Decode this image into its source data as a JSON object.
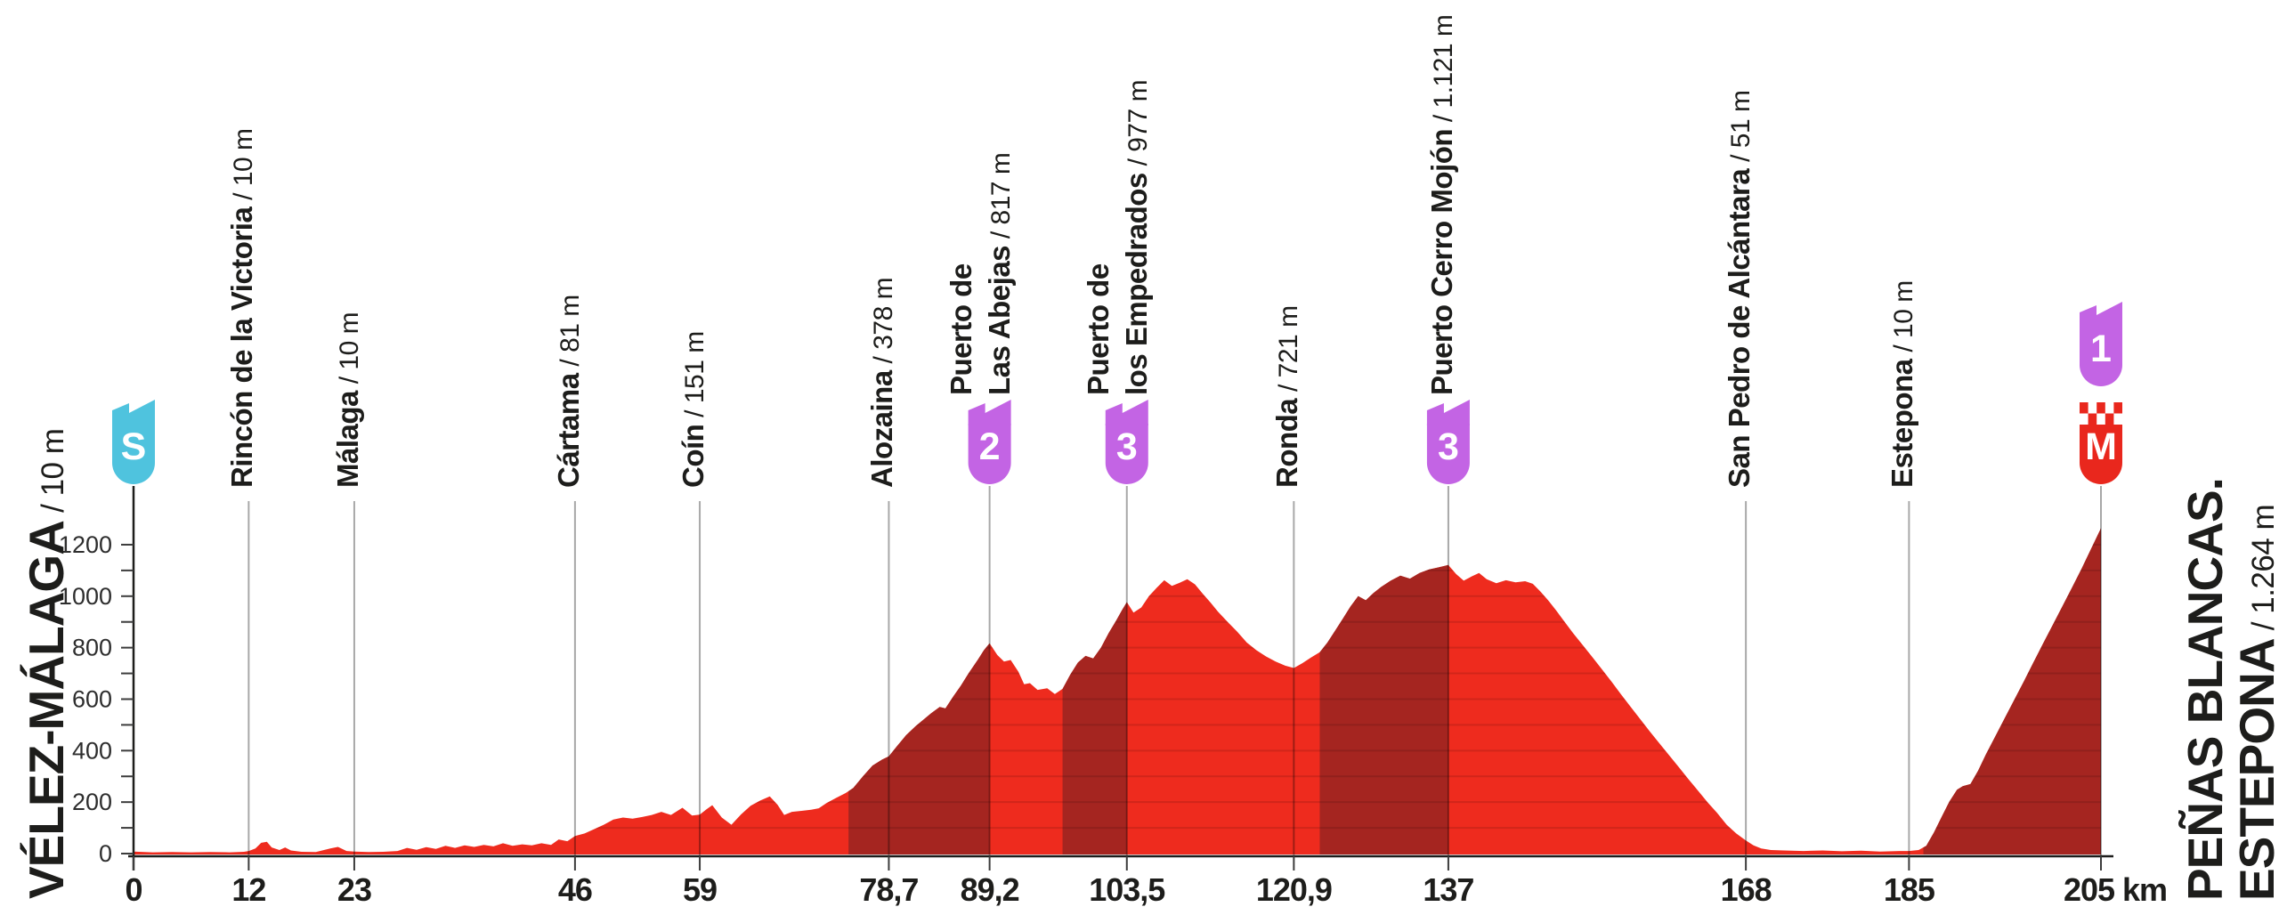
{
  "stage": {
    "start_name": "VÉLEZ-MÁLAGA",
    "start_elevation": " / 10 m",
    "finish_line1": "PEÑAS BLANCAS.",
    "finish_line2": "ESTEPONA",
    "finish_elevation": " / 1.264 m"
  },
  "colors": {
    "profile_red": "#ee2b1e",
    "climb_dark_red": "#a52520",
    "category_purple": "#c364e4",
    "start_cyan": "#4fc3de",
    "finish_red": "#e9271d",
    "text_black": "#1d1d1b",
    "axis_gray": "#3c3c3c",
    "gridline": "rgba(0,0,0,0.34)",
    "stripe": "rgba(0,0,0,0.12)"
  },
  "chart_data": {
    "type": "area",
    "title": "Stage elevation profile Vélez-Málaga to Peñas Blancas. Estepona",
    "xlabel": "km",
    "ylabel": "m",
    "xlim": [
      0,
      205
    ],
    "ylim": [
      0,
      1300
    ],
    "grid_step_m": 100,
    "y_ticks": [
      0,
      200,
      400,
      600,
      800,
      1000,
      1200
    ],
    "y_minor_step": 100,
    "x_ticks": [
      {
        "km": 0,
        "label": "0"
      },
      {
        "km": 12,
        "label": "12"
      },
      {
        "km": 23,
        "label": "23"
      },
      {
        "km": 46,
        "label": "46"
      },
      {
        "km": 59,
        "label": "59"
      },
      {
        "km": 78.7,
        "label": "78,7"
      },
      {
        "km": 89.2,
        "label": "89,2"
      },
      {
        "km": 103.5,
        "label": "103,5"
      },
      {
        "km": 120.9,
        "label": "120,9"
      },
      {
        "km": 137,
        "label": "137"
      },
      {
        "km": 168,
        "label": "168"
      },
      {
        "km": 185,
        "label": "185"
      },
      {
        "km": 205,
        "label": "205 km"
      }
    ],
    "start_marker": {
      "km": 0,
      "letter": "S"
    },
    "finish_markers": [
      {
        "letter": "1",
        "type": "category"
      },
      {
        "letter": "M",
        "type": "meta"
      }
    ],
    "finish_km": 205,
    "waypoints": [
      {
        "names": [
          "Rincón de la Victoria"
        ],
        "elevation_label": "/ 10 m",
        "km": 12,
        "type": "town"
      },
      {
        "names": [
          "Málaga"
        ],
        "elevation_label": "/ 10 m",
        "km": 23,
        "type": "town"
      },
      {
        "names": [
          "Cártama"
        ],
        "elevation_label": "/ 81 m",
        "km": 46,
        "type": "town"
      },
      {
        "names": [
          "Coín"
        ],
        "elevation_label": "/ 151 m",
        "km": 59,
        "type": "town"
      },
      {
        "names": [
          "Alozaina"
        ],
        "elevation_label": "/ 378 m",
        "km": 78.7,
        "type": "town"
      },
      {
        "names": [
          "Puerto de",
          "Las Abejas"
        ],
        "elevation_label": "/ 817 m",
        "km": 89.2,
        "type": "climb",
        "category": "2"
      },
      {
        "names": [
          "Puerto de",
          "los Empedrados"
        ],
        "elevation_label": "/ 977 m",
        "km": 103.5,
        "type": "climb",
        "category": "3"
      },
      {
        "names": [
          "Ronda"
        ],
        "elevation_label": "/ 721 m",
        "km": 120.9,
        "type": "town"
      },
      {
        "names": [
          "Puerto Cerro Mojón"
        ],
        "elevation_label": "/ 1.121 m",
        "km": 137,
        "type": "climb",
        "category": "3"
      },
      {
        "names": [
          "San Pedro de Alcántara"
        ],
        "elevation_label": "/ 51 m",
        "km": 168,
        "type": "town"
      },
      {
        "names": [
          "Estepona"
        ],
        "elevation_label": "/ 10 m",
        "km": 185,
        "type": "town"
      }
    ],
    "climb_segments_km": [
      [
        74.5,
        89.2
      ],
      [
        96.8,
        103.5
      ],
      [
        123.6,
        137
      ],
      [
        186.5,
        205
      ]
    ],
    "profile": [
      [
        0,
        8
      ],
      [
        2,
        5
      ],
      [
        4,
        6
      ],
      [
        6,
        5
      ],
      [
        8,
        6
      ],
      [
        10,
        5
      ],
      [
        11.5,
        7
      ],
      [
        12,
        10
      ],
      [
        12.7,
        20
      ],
      [
        13.3,
        42
      ],
      [
        13.9,
        46
      ],
      [
        14.4,
        24
      ],
      [
        15.2,
        14
      ],
      [
        15.8,
        24
      ],
      [
        16.4,
        12
      ],
      [
        17.5,
        7
      ],
      [
        19,
        6
      ],
      [
        20.5,
        20
      ],
      [
        21.3,
        26
      ],
      [
        22.2,
        10
      ],
      [
        23,
        8
      ],
      [
        24.5,
        6
      ],
      [
        26,
        7
      ],
      [
        27.5,
        10
      ],
      [
        28.5,
        22
      ],
      [
        29.5,
        15
      ],
      [
        30.5,
        25
      ],
      [
        31.5,
        18
      ],
      [
        32.5,
        30
      ],
      [
        33.5,
        22
      ],
      [
        34.5,
        32
      ],
      [
        35.5,
        26
      ],
      [
        36.5,
        34
      ],
      [
        37.5,
        28
      ],
      [
        38.5,
        40
      ],
      [
        39.5,
        30
      ],
      [
        40.5,
        36
      ],
      [
        41.5,
        32
      ],
      [
        42.5,
        40
      ],
      [
        43.5,
        34
      ],
      [
        44.3,
        55
      ],
      [
        45.2,
        48
      ],
      [
        46,
        68
      ],
      [
        47,
        78
      ],
      [
        48,
        95
      ],
      [
        49,
        112
      ],
      [
        50,
        132
      ],
      [
        51,
        140
      ],
      [
        52,
        136
      ],
      [
        53,
        142
      ],
      [
        54,
        150
      ],
      [
        55,
        162
      ],
      [
        56,
        150
      ],
      [
        57.2,
        178
      ],
      [
        58.2,
        148
      ],
      [
        59,
        151
      ],
      [
        59.7,
        172
      ],
      [
        60.3,
        188
      ],
      [
        61.3,
        140
      ],
      [
        62.3,
        112
      ],
      [
        63.3,
        152
      ],
      [
        64.3,
        186
      ],
      [
        65.3,
        206
      ],
      [
        66.3,
        222
      ],
      [
        67.1,
        190
      ],
      [
        67.8,
        150
      ],
      [
        68.6,
        162
      ],
      [
        69.6,
        166
      ],
      [
        70.6,
        170
      ],
      [
        71.4,
        176
      ],
      [
        72.2,
        196
      ],
      [
        73.2,
        216
      ],
      [
        74.2,
        235
      ],
      [
        75,
        255
      ],
      [
        76,
        300
      ],
      [
        77,
        342
      ],
      [
        78,
        365
      ],
      [
        78.7,
        378
      ],
      [
        79.5,
        415
      ],
      [
        80.5,
        460
      ],
      [
        81.5,
        495
      ],
      [
        82.3,
        520
      ],
      [
        83.1,
        545
      ],
      [
        84,
        570
      ],
      [
        84.6,
        564
      ],
      [
        85.4,
        610
      ],
      [
        86.2,
        652
      ],
      [
        87,
        700
      ],
      [
        88,
        755
      ],
      [
        88.6,
        790
      ],
      [
        89.2,
        817
      ],
      [
        90,
        772
      ],
      [
        90.7,
        746
      ],
      [
        91.4,
        752
      ],
      [
        92.2,
        706
      ],
      [
        92.8,
        658
      ],
      [
        93.4,
        662
      ],
      [
        94.2,
        636
      ],
      [
        95.2,
        642
      ],
      [
        96,
        620
      ],
      [
        96.8,
        640
      ],
      [
        97.6,
        695
      ],
      [
        98.4,
        742
      ],
      [
        99.2,
        768
      ],
      [
        100,
        758
      ],
      [
        100.8,
        800
      ],
      [
        101.6,
        856
      ],
      [
        102.4,
        906
      ],
      [
        103,
        946
      ],
      [
        103.5,
        977
      ],
      [
        104.2,
        936
      ],
      [
        105,
        956
      ],
      [
        105.8,
        1000
      ],
      [
        106.6,
        1032
      ],
      [
        107.4,
        1062
      ],
      [
        108.2,
        1040
      ],
      [
        109,
        1052
      ],
      [
        109.8,
        1066
      ],
      [
        110.6,
        1046
      ],
      [
        111.4,
        1010
      ],
      [
        112.2,
        976
      ],
      [
        113,
        940
      ],
      [
        114,
        900
      ],
      [
        115,
        862
      ],
      [
        116,
        820
      ],
      [
        117,
        790
      ],
      [
        118,
        766
      ],
      [
        119,
        746
      ],
      [
        120,
        730
      ],
      [
        120.9,
        721
      ],
      [
        121.8,
        740
      ],
      [
        122.7,
        762
      ],
      [
        123.6,
        782
      ],
      [
        124.4,
        820
      ],
      [
        125.2,
        866
      ],
      [
        126,
        912
      ],
      [
        126.8,
        960
      ],
      [
        127.6,
        1000
      ],
      [
        128.4,
        984
      ],
      [
        129.2,
        1012
      ],
      [
        130,
        1036
      ],
      [
        131,
        1060
      ],
      [
        132,
        1080
      ],
      [
        133,
        1068
      ],
      [
        134,
        1090
      ],
      [
        135,
        1104
      ],
      [
        136,
        1112
      ],
      [
        137,
        1121
      ],
      [
        137.8,
        1086
      ],
      [
        138.6,
        1060
      ],
      [
        139.4,
        1076
      ],
      [
        140.2,
        1090
      ],
      [
        141,
        1066
      ],
      [
        142,
        1050
      ],
      [
        143,
        1062
      ],
      [
        144,
        1054
      ],
      [
        145,
        1058
      ],
      [
        145.8,
        1048
      ],
      [
        146.6,
        1018
      ],
      [
        147.4,
        984
      ],
      [
        148.2,
        946
      ],
      [
        149,
        906
      ],
      [
        150,
        856
      ],
      [
        151,
        810
      ],
      [
        152,
        764
      ],
      [
        153,
        716
      ],
      [
        154,
        668
      ],
      [
        155,
        618
      ],
      [
        156,
        570
      ],
      [
        157,
        522
      ],
      [
        158,
        474
      ],
      [
        159,
        428
      ],
      [
        160,
        382
      ],
      [
        161,
        336
      ],
      [
        162,
        290
      ],
      [
        163,
        245
      ],
      [
        164,
        200
      ],
      [
        165,
        158
      ],
      [
        166,
        112
      ],
      [
        167,
        78
      ],
      [
        168,
        51
      ],
      [
        168.8,
        32
      ],
      [
        169.6,
        20
      ],
      [
        170.6,
        14
      ],
      [
        172,
        12
      ],
      [
        174,
        10
      ],
      [
        176,
        12
      ],
      [
        178,
        9
      ],
      [
        180,
        11
      ],
      [
        182,
        8
      ],
      [
        184,
        10
      ],
      [
        185,
        10
      ],
      [
        186,
        14
      ],
      [
        186.8,
        30
      ],
      [
        187.6,
        82
      ],
      [
        188.4,
        142
      ],
      [
        189.2,
        202
      ],
      [
        190,
        248
      ],
      [
        190.6,
        262
      ],
      [
        191.4,
        270
      ],
      [
        192.2,
        322
      ],
      [
        193,
        384
      ],
      [
        194,
        456
      ],
      [
        195,
        528
      ],
      [
        196,
        600
      ],
      [
        197,
        672
      ],
      [
        198,
        745
      ],
      [
        199,
        818
      ],
      [
        200,
        890
      ],
      [
        201,
        962
      ],
      [
        202,
        1035
      ],
      [
        203,
        1108
      ],
      [
        204,
        1186
      ],
      [
        205,
        1264
      ]
    ]
  }
}
